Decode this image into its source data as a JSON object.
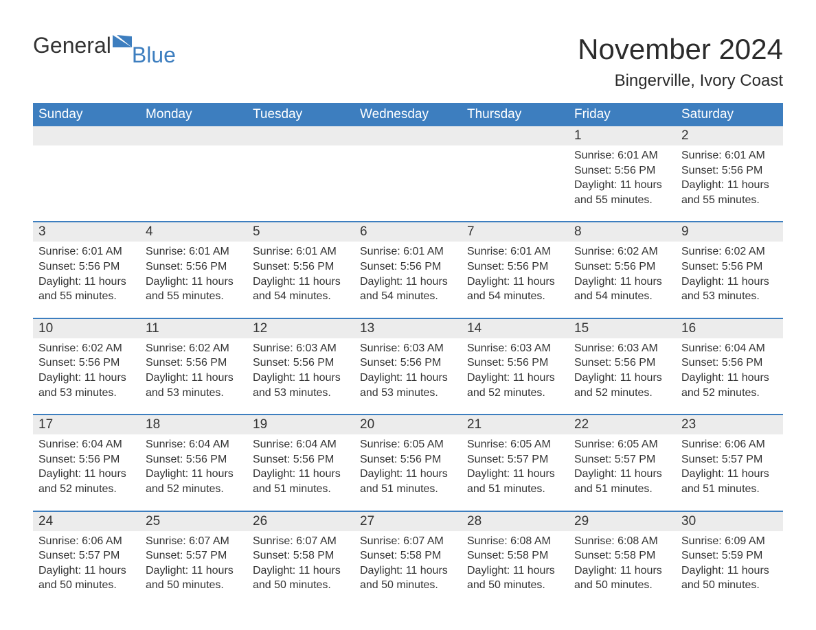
{
  "logo": {
    "text1": "General",
    "text2": "Blue"
  },
  "title": "November 2024",
  "location": "Bingerville, Ivory Coast",
  "colors": {
    "header_bg": "#3d7ebf",
    "header_text": "#ffffff",
    "daynum_bg": "#ececec",
    "rule": "#3d7ebf",
    "text": "#333333",
    "page_bg": "#ffffff"
  },
  "dow": [
    "Sunday",
    "Monday",
    "Tuesday",
    "Wednesday",
    "Thursday",
    "Friday",
    "Saturday"
  ],
  "labels": {
    "sunrise": "Sunrise: ",
    "sunset": "Sunset: ",
    "daylight": "Daylight: "
  },
  "weeks": [
    [
      null,
      null,
      null,
      null,
      null,
      {
        "n": "1",
        "sr": "6:01 AM",
        "ss": "5:56 PM",
        "dl": "11 hours and 55 minutes."
      },
      {
        "n": "2",
        "sr": "6:01 AM",
        "ss": "5:56 PM",
        "dl": "11 hours and 55 minutes."
      }
    ],
    [
      {
        "n": "3",
        "sr": "6:01 AM",
        "ss": "5:56 PM",
        "dl": "11 hours and 55 minutes."
      },
      {
        "n": "4",
        "sr": "6:01 AM",
        "ss": "5:56 PM",
        "dl": "11 hours and 55 minutes."
      },
      {
        "n": "5",
        "sr": "6:01 AM",
        "ss": "5:56 PM",
        "dl": "11 hours and 54 minutes."
      },
      {
        "n": "6",
        "sr": "6:01 AM",
        "ss": "5:56 PM",
        "dl": "11 hours and 54 minutes."
      },
      {
        "n": "7",
        "sr": "6:01 AM",
        "ss": "5:56 PM",
        "dl": "11 hours and 54 minutes."
      },
      {
        "n": "8",
        "sr": "6:02 AM",
        "ss": "5:56 PM",
        "dl": "11 hours and 54 minutes."
      },
      {
        "n": "9",
        "sr": "6:02 AM",
        "ss": "5:56 PM",
        "dl": "11 hours and 53 minutes."
      }
    ],
    [
      {
        "n": "10",
        "sr": "6:02 AM",
        "ss": "5:56 PM",
        "dl": "11 hours and 53 minutes."
      },
      {
        "n": "11",
        "sr": "6:02 AM",
        "ss": "5:56 PM",
        "dl": "11 hours and 53 minutes."
      },
      {
        "n": "12",
        "sr": "6:03 AM",
        "ss": "5:56 PM",
        "dl": "11 hours and 53 minutes."
      },
      {
        "n": "13",
        "sr": "6:03 AM",
        "ss": "5:56 PM",
        "dl": "11 hours and 53 minutes."
      },
      {
        "n": "14",
        "sr": "6:03 AM",
        "ss": "5:56 PM",
        "dl": "11 hours and 52 minutes."
      },
      {
        "n": "15",
        "sr": "6:03 AM",
        "ss": "5:56 PM",
        "dl": "11 hours and 52 minutes."
      },
      {
        "n": "16",
        "sr": "6:04 AM",
        "ss": "5:56 PM",
        "dl": "11 hours and 52 minutes."
      }
    ],
    [
      {
        "n": "17",
        "sr": "6:04 AM",
        "ss": "5:56 PM",
        "dl": "11 hours and 52 minutes."
      },
      {
        "n": "18",
        "sr": "6:04 AM",
        "ss": "5:56 PM",
        "dl": "11 hours and 52 minutes."
      },
      {
        "n": "19",
        "sr": "6:04 AM",
        "ss": "5:56 PM",
        "dl": "11 hours and 51 minutes."
      },
      {
        "n": "20",
        "sr": "6:05 AM",
        "ss": "5:56 PM",
        "dl": "11 hours and 51 minutes."
      },
      {
        "n": "21",
        "sr": "6:05 AM",
        "ss": "5:57 PM",
        "dl": "11 hours and 51 minutes."
      },
      {
        "n": "22",
        "sr": "6:05 AM",
        "ss": "5:57 PM",
        "dl": "11 hours and 51 minutes."
      },
      {
        "n": "23",
        "sr": "6:06 AM",
        "ss": "5:57 PM",
        "dl": "11 hours and 51 minutes."
      }
    ],
    [
      {
        "n": "24",
        "sr": "6:06 AM",
        "ss": "5:57 PM",
        "dl": "11 hours and 50 minutes."
      },
      {
        "n": "25",
        "sr": "6:07 AM",
        "ss": "5:57 PM",
        "dl": "11 hours and 50 minutes."
      },
      {
        "n": "26",
        "sr": "6:07 AM",
        "ss": "5:58 PM",
        "dl": "11 hours and 50 minutes."
      },
      {
        "n": "27",
        "sr": "6:07 AM",
        "ss": "5:58 PM",
        "dl": "11 hours and 50 minutes."
      },
      {
        "n": "28",
        "sr": "6:08 AM",
        "ss": "5:58 PM",
        "dl": "11 hours and 50 minutes."
      },
      {
        "n": "29",
        "sr": "6:08 AM",
        "ss": "5:58 PM",
        "dl": "11 hours and 50 minutes."
      },
      {
        "n": "30",
        "sr": "6:09 AM",
        "ss": "5:59 PM",
        "dl": "11 hours and 50 minutes."
      }
    ]
  ]
}
